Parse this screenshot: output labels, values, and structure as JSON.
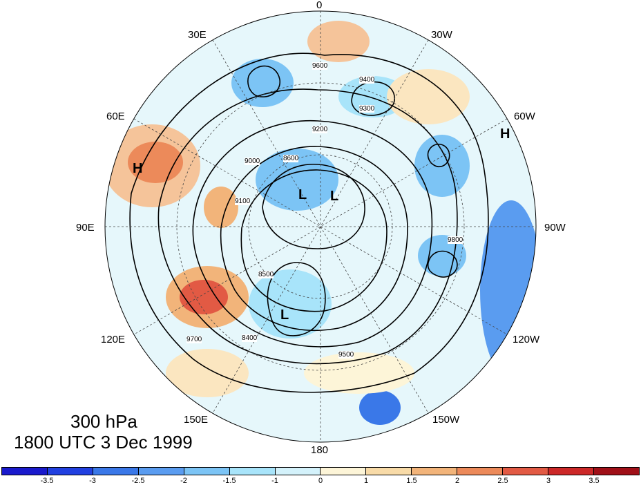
{
  "title": {
    "level": "300 hPa",
    "datetime": "1800 UTC 3 Dec 1999"
  },
  "longitude_labels": [
    {
      "id": "0",
      "text": "0"
    },
    {
      "id": "30W",
      "text": "30W"
    },
    {
      "id": "60W",
      "text": "60W"
    },
    {
      "id": "90W",
      "text": "90W"
    },
    {
      "id": "120W",
      "text": "120W"
    },
    {
      "id": "150W",
      "text": "150W"
    },
    {
      "id": "180",
      "text": "180"
    },
    {
      "id": "150E",
      "text": "150E"
    },
    {
      "id": "120E",
      "text": "120E"
    },
    {
      "id": "90E",
      "text": "90E"
    },
    {
      "id": "60E",
      "text": "60E"
    },
    {
      "id": "30E",
      "text": "30E"
    }
  ],
  "pressure_centers": [
    {
      "id": "high-1",
      "text": "H"
    },
    {
      "id": "high-2",
      "text": "H"
    },
    {
      "id": "low-1",
      "text": "L"
    },
    {
      "id": "low-2",
      "text": "L"
    },
    {
      "id": "low-3",
      "text": "L"
    }
  ],
  "contour_labels": [
    "9600",
    "9500",
    "9400",
    "9300",
    "9200",
    "9100",
    "9000",
    "8500",
    "9700",
    "9800",
    "8600",
    "8400"
  ],
  "colorbar": {
    "tick_labels": [
      "-3.5",
      "-3",
      "-2.5",
      "-2",
      "-1.5",
      "-1",
      "0",
      "1",
      "1.5",
      "2",
      "2.5",
      "3",
      "3.5"
    ],
    "colors": [
      "#1a1acc",
      "#2140e0",
      "#3a78e8",
      "#5a9cf0",
      "#7cc4f5",
      "#a8e4fa",
      "#d4f2fb",
      "#fdf5d8",
      "#f8dba8",
      "#f2b47a",
      "#ec8a5a",
      "#e25a44",
      "#cc2828",
      "#a01018"
    ]
  }
}
